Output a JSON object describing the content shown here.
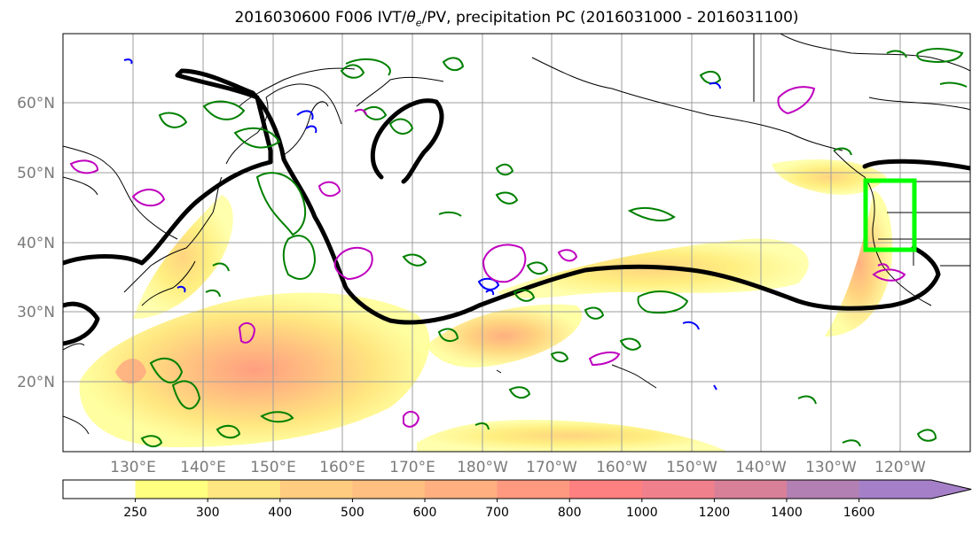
{
  "title_prefix": "2016030600 F006 IVT/",
  "title_theta": "θ",
  "title_theta_sub": "e",
  "title_suffix": "/PV, precipitation PC (2016031000 - 2016031100)",
  "map": {
    "lat_labels": [
      "20°N",
      "30°N",
      "40°N",
      "50°N",
      "60°N"
    ],
    "lon_labels": [
      "130°E",
      "140°E",
      "150°E",
      "160°E",
      "170°E",
      "180°W",
      "170°W",
      "160°W",
      "150°W",
      "140°W",
      "130°W",
      "120°W"
    ],
    "colors": {
      "pv_contour": "#000000",
      "positive_contour": "#008000",
      "negative_contour": "#0000ff",
      "theta_e_contour": "#bf00bf",
      "target_box": "#00ff00",
      "coastline": "#000000"
    }
  },
  "colorbar": {
    "ticks": [
      "250",
      "300",
      "400",
      "500",
      "600",
      "700",
      "800",
      "1000",
      "1200",
      "1400",
      "1600"
    ],
    "colors": [
      "#ffffff",
      "#ffff80",
      "#ffe680",
      "#ffcc80",
      "#ffbf80",
      "#ffaf80",
      "#ff9980",
      "#ff8080",
      "#f0808c",
      "#d98099",
      "#b380b3",
      "#a580c8"
    ],
    "extend": "max"
  }
}
